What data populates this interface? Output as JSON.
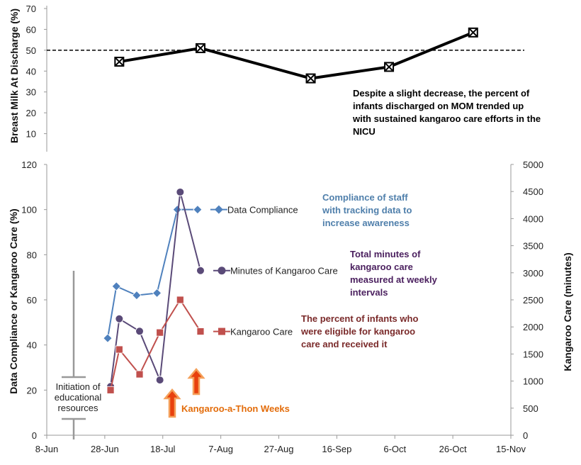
{
  "chart_data": [
    {
      "type": "line",
      "ylabel": "Breast Milk At Discharge (%)",
      "ylim": [
        0,
        70
      ],
      "y_ticks": [
        "10",
        "20",
        "30",
        "40",
        "50",
        "60",
        "70"
      ],
      "reference_line": 50,
      "series": [
        {
          "color": "#000000",
          "marker": "x-square",
          "points": [
            {
              "x": "2015-07-03",
              "y": 44.5
            },
            {
              "x": "2015-07-31",
              "y": 51
            },
            {
              "x": "2015-09-07",
              "y": 36.5
            },
            {
              "x": "2015-10-04",
              "y": 42
            },
            {
              "x": "2015-11-02",
              "y": 58.5
            }
          ]
        }
      ],
      "annotation": {
        "lines": [
          "Despite a slight decrease, the percent of",
          "infants discharged on MOM trended up",
          "with sustained kangaroo care efforts in the",
          "NICU"
        ],
        "color": "#000000"
      }
    },
    {
      "type": "line",
      "xlabel": "",
      "ylabel": "Data Compliance or Kangaroo Care (%)",
      "y2label": "Kangaroo Care (minutes)",
      "ylim": [
        0,
        120
      ],
      "y2lim": [
        0,
        5000
      ],
      "xlim": [
        "2015-06-08",
        "2015-11-15"
      ],
      "x_ticks": [
        "8-Jun",
        "28-Jun",
        "18-Jul",
        "7-Aug",
        "27-Aug",
        "16-Sep",
        "6-Oct",
        "26-Oct",
        "15-Nov"
      ],
      "y_ticks": [
        "0",
        "20",
        "40",
        "60",
        "80",
        "100",
        "120"
      ],
      "y2_ticks": [
        "0",
        "500",
        "1000",
        "1500",
        "2000",
        "2500",
        "3000",
        "3500",
        "4000",
        "4500",
        "5000"
      ],
      "series": [
        {
          "name": "Data Compliance",
          "color": "#4f81bd",
          "marker": "diamond",
          "axis": "left",
          "points": [
            {
              "x": "2015-06-29",
              "y": 43
            },
            {
              "x": "2015-07-02",
              "y": 66
            },
            {
              "x": "2015-07-09",
              "y": 62
            },
            {
              "x": "2015-07-16",
              "y": 63
            },
            {
              "x": "2015-07-23",
              "y": 100
            },
            {
              "x": "2015-07-30",
              "y": 100
            }
          ]
        },
        {
          "name": "Minutes of Kangaroo Care",
          "color": "#5a4a78",
          "marker": "circle",
          "axis": "right",
          "points": [
            {
              "x": "2015-06-30",
              "y": 900
            },
            {
              "x": "2015-07-03",
              "y": 2150
            },
            {
              "x": "2015-07-10",
              "y": 1920
            },
            {
              "x": "2015-07-17",
              "y": 1020
            },
            {
              "x": "2015-07-24",
              "y": 4490
            },
            {
              "x": "2015-07-31",
              "y": 3040
            }
          ]
        },
        {
          "name": "Kangaroo Care",
          "color": "#c0504d",
          "marker": "square",
          "axis": "left",
          "points": [
            {
              "x": "2015-06-30",
              "y": 20
            },
            {
              "x": "2015-07-03",
              "y": 38
            },
            {
              "x": "2015-07-10",
              "y": 27
            },
            {
              "x": "2015-07-17",
              "y": 45.5
            },
            {
              "x": "2015-07-24",
              "y": 60
            },
            {
              "x": "2015-07-31",
              "y": 46
            }
          ]
        }
      ],
      "annotations": [
        {
          "id": "compliance",
          "lines": [
            "Compliance of staff",
            "with tracking data to",
            "increase awareness"
          ],
          "color": "#4f7fab"
        },
        {
          "id": "minutes",
          "lines": [
            "Total minutes of",
            "kangaroo care",
            "measured at weekly",
            "intervals"
          ],
          "color": "#4a1f5e"
        },
        {
          "id": "percent",
          "lines": [
            "The percent of infants who",
            "were eligible for kangaroo",
            "care and received it"
          ],
          "color": "#7a2a2a"
        },
        {
          "id": "education",
          "lines": [
            "Initiation of",
            "educational",
            "resources"
          ],
          "color": "#8a8a8a"
        },
        {
          "id": "kangathon",
          "lines": [
            "Kangaroo-a-Thon Weeks"
          ],
          "color": "#e36c0a"
        }
      ]
    }
  ]
}
